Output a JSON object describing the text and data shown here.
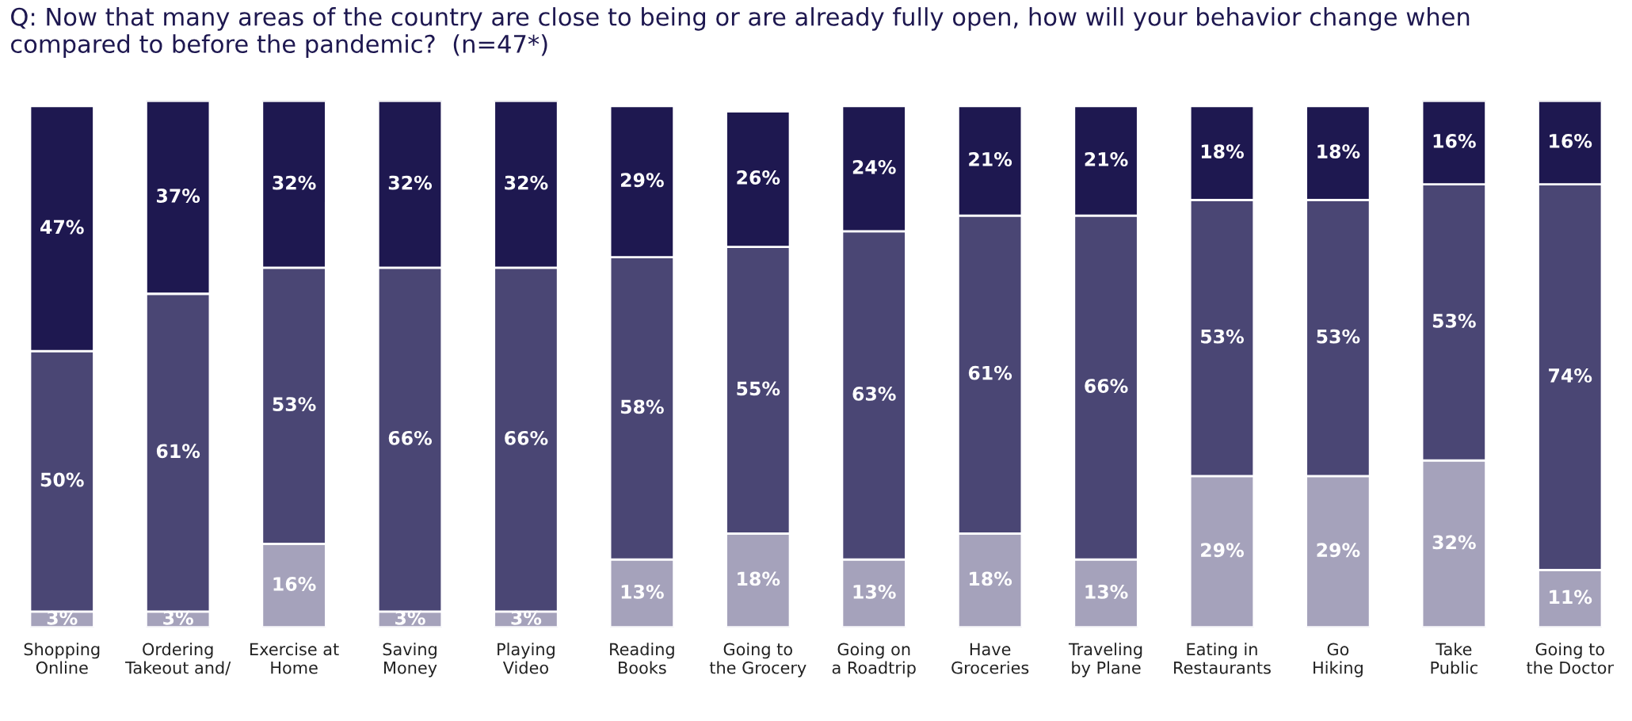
{
  "chart_data": {
    "type": "bar",
    "stacked": true,
    "title": "Q: Now that many areas of the country are close to being or are already fully open, how will your behavior change when\ncompared to before the pandemic?  (n=47*)",
    "categories": [
      "Shopping\nOnline",
      "Ordering\nTakeout and/",
      "Exercise at\nHome",
      "Saving\nMoney",
      "Playing\nVideo",
      "Reading\nBooks",
      "Going to\nthe Grocery",
      "Going on\na Roadtrip",
      "Have\nGroceries",
      "Traveling\nby Plane",
      "Eating in\nRestaurants",
      "Go\nHiking",
      "Take\nPublic",
      "Going to\nthe Doctor"
    ],
    "series": [
      {
        "color": "#a5a2bb",
        "values": [
          3,
          3,
          16,
          3,
          3,
          13,
          18,
          13,
          18,
          13,
          29,
          29,
          32,
          11
        ],
        "value_labels": [
          "3%",
          "3%",
          "16%",
          "3%",
          "3%",
          "13%",
          "18%",
          "13%",
          "18%",
          "13%",
          "29%",
          "29%",
          "32%",
          "11%"
        ]
      },
      {
        "color": "#4a4674",
        "values": [
          50,
          61,
          53,
          66,
          66,
          58,
          55,
          63,
          61,
          66,
          53,
          53,
          53,
          74
        ],
        "value_labels": [
          "50%",
          "61%",
          "53%",
          "66%",
          "66%",
          "58%",
          "55%",
          "63%",
          "61%",
          "66%",
          "53%",
          "53%",
          "53%",
          "74%"
        ]
      },
      {
        "color": "#1e1850",
        "values": [
          47,
          37,
          32,
          32,
          32,
          29,
          26,
          24,
          21,
          21,
          18,
          18,
          16,
          16
        ],
        "value_labels": [
          "47%",
          "37%",
          "32%",
          "32%",
          "32%",
          "29%",
          "26%",
          "24%",
          "21%",
          "21%",
          "18%",
          "18%",
          "16%",
          "16%"
        ]
      }
    ],
    "legend": false,
    "grid": false
  }
}
